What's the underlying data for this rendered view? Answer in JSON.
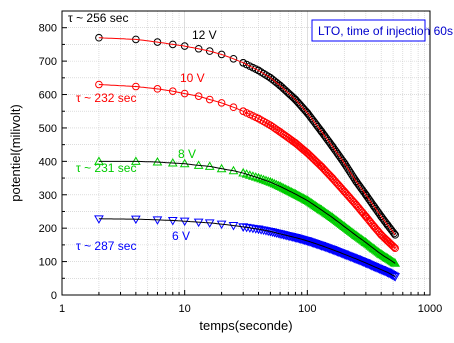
{
  "chart_data": {
    "type": "scatter",
    "xscale": "log",
    "xlim": [
      1,
      1000
    ],
    "ylim": [
      0,
      850
    ],
    "xlabel": "temps(seconde)",
    "ylabel": "potentiel(milivolt)",
    "xticks": [
      "1",
      "10",
      "100",
      "1000"
    ],
    "yticks": [
      "0",
      "100",
      "200",
      "300",
      "400",
      "500",
      "600",
      "700",
      "800"
    ],
    "grid": true,
    "legend_box": "LTO, time of injection 60s",
    "legend_position": "top-right",
    "series": [
      {
        "name": "12 V",
        "tau_label": "τ ~ 256 sec",
        "color": "#000000",
        "marker": "circle",
        "fit_color": "#ff0000",
        "x": [
          2,
          4,
          6,
          8,
          10,
          13,
          16,
          20,
          25,
          30,
          40,
          50,
          60,
          80,
          100,
          130,
          160,
          200,
          250,
          300,
          350,
          400,
          450,
          520
        ],
        "y": [
          770,
          765,
          757,
          750,
          745,
          737,
          730,
          720,
          707,
          695,
          672,
          650,
          627,
          585,
          545,
          490,
          445,
          395,
          340,
          300,
          265,
          235,
          210,
          180
        ]
      },
      {
        "name": "10 V",
        "tau_label": "τ ~ 232 sec",
        "color": "#ff0000",
        "marker": "circle",
        "fit_color": "#ff0000",
        "x": [
          2,
          4,
          6,
          8,
          10,
          13,
          16,
          20,
          25,
          30,
          40,
          50,
          60,
          80,
          100,
          130,
          160,
          200,
          250,
          300,
          350,
          400,
          450,
          520
        ],
        "y": [
          630,
          624,
          617,
          610,
          603,
          595,
          585,
          575,
          562,
          550,
          528,
          508,
          488,
          455,
          425,
          385,
          350,
          310,
          270,
          235,
          205,
          180,
          162,
          140
        ]
      },
      {
        "name": "8 V",
        "tau_label": "τ ~ 231 sec",
        "color": "#00cc00",
        "marker": "triangle-up",
        "fit_color": "#000000",
        "x": [
          2,
          4,
          6,
          8,
          10,
          13,
          16,
          20,
          25,
          30,
          40,
          50,
          60,
          80,
          100,
          130,
          160,
          200,
          250,
          300,
          350,
          400,
          450,
          520
        ],
        "y": [
          400,
          400,
          398,
          395,
          393,
          388,
          385,
          378,
          372,
          365,
          350,
          338,
          325,
          302,
          283,
          255,
          232,
          205,
          178,
          157,
          138,
          122,
          110,
          95
        ]
      },
      {
        "name": "6 V",
        "tau_label": "τ ~ 287 sec",
        "color": "#0000ff",
        "marker": "triangle-down",
        "fit_color": "#000000",
        "x": [
          2,
          4,
          6,
          8,
          10,
          13,
          16,
          20,
          25,
          30,
          40,
          50,
          60,
          80,
          100,
          130,
          160,
          200,
          250,
          300,
          350,
          400,
          450,
          520
        ],
        "y": [
          228,
          227,
          225,
          223,
          221,
          218,
          216,
          212,
          208,
          204,
          197,
          190,
          183,
          172,
          162,
          148,
          136,
          122,
          108,
          96,
          85,
          76,
          68,
          55
        ]
      }
    ]
  }
}
